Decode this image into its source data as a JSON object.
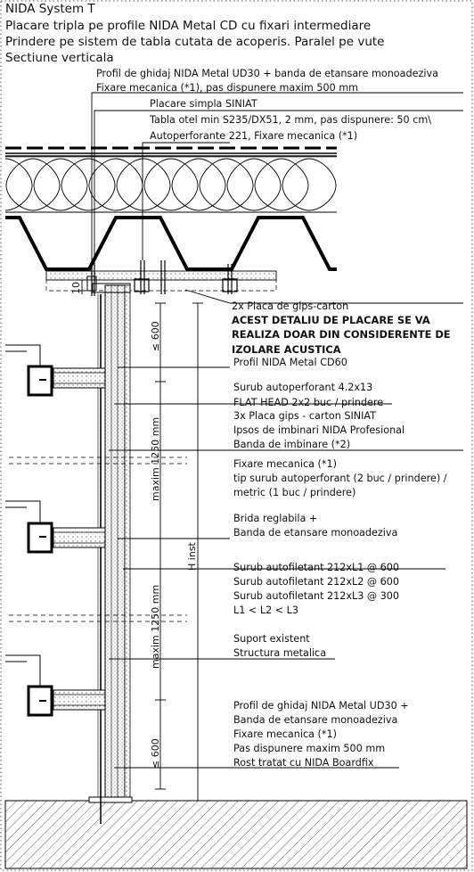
{
  "header": {
    "system": "NIDA System T",
    "line1": "Placare tripla pe profile NIDA Metal CD cu fixari intermediare",
    "line2": "Prindere pe sistem de tabla cutata de acoperis. Paralel pe vute",
    "line3": "Sectiune verticala"
  },
  "labels": {
    "l01": "Profil de ghidaj NIDA Metal UD30 +  banda de etansare monoadeziva",
    "l02": "Fixare mecanica (*1), pas dispunere maxim 500 mm",
    "l03": "Placare simpla SINIAT",
    "l04": "Tabla otel min S235/DX51, 2 mm, pas dispunere: 50 cm\\",
    "l05": "Autoperforante 221, Fixare mecanica (*1)",
    "l06": "2x Placa de gips-carton",
    "l07": "ACEST DETALIU DE PLACARE SE VA",
    "l08": "REALIZA DOAR DIN CONSIDERENTE DE",
    "l09": "IZOLARE ACUSTICA",
    "l10": "Profil NIDA Metal CD60",
    "l11": "Surub autoperforant 4.2x13",
    "l12": "FLAT HEAD 2x2 buc / prindere",
    "l13": "3x Placa gips - carton SINIAT",
    "l14": "Ipsos de imbinari NIDA Profesional",
    "l15": "Banda de imbinare (*2)",
    "l16": "Fixare mecanica (*1)",
    "l17": "tip surub autoperforant (2 buc / prindere) /",
    "l18": "metric (1 buc / prindere)",
    "l19": "Brida reglabila +",
    "l20": "Banda de etansare monoadeziva",
    "l21": "Surub autofiletant 212xL1 @ 600",
    "l22": "Surub autofiletant 212xL2 @ 600",
    "l23": "Surub autofiletant 212xL3 @ 300",
    "l24": "L1 < L2 < L3",
    "l25": "Suport existent",
    "l26": "Structura metalica",
    "l27": "Profil de ghidaj NIDA Metal UD30 +",
    "l28": "Banda de etansare monoadeziva",
    "l29": "Fixare mecanica (*1)",
    "l30": "Pas dispunere maxim 500 mm",
    "l31": "Rost tratat cu NIDA Boardfix"
  },
  "dimensions": {
    "d10": "10",
    "top600": "≤ 600",
    "max1250a": "maxim 1250 mm",
    "max1250b": "maxim 1250 mm",
    "bottom600": "≤ 600",
    "hinst": "H inst"
  }
}
